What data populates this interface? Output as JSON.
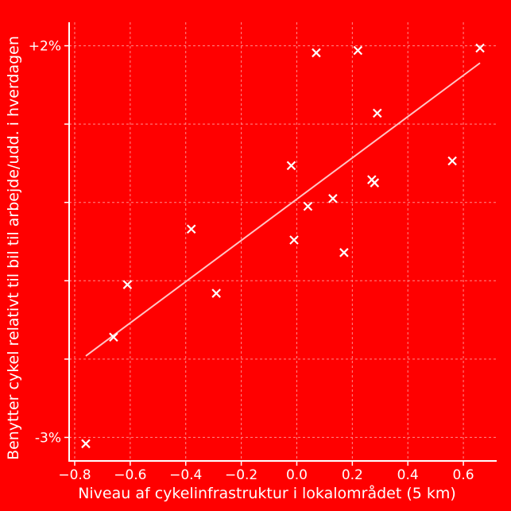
{
  "chart_data": {
    "type": "scatter",
    "xlabel": "Niveau af cykelinfrastruktur i lokalområdet (5 km)",
    "ylabel": "Benytter cykel relativt til bil til arbejde/udd. i hverdagen",
    "xlim": [
      -0.82,
      0.72
    ],
    "ylim": [
      -3.3,
      2.3
    ],
    "x_ticks": [
      -0.8,
      -0.6,
      -0.4,
      -0.2,
      0.0,
      0.2,
      0.4,
      0.6
    ],
    "x_tick_labels": [
      "−0.8",
      "−0.6",
      "−0.4",
      "−0.2",
      "0.0",
      "0.2",
      "0.4",
      "0.6"
    ],
    "y_ticks": [
      -3,
      -2,
      -1,
      0,
      1,
      2
    ],
    "y_tick_labels": [
      "-3%",
      "",
      "",
      "",
      "",
      "+2%"
    ],
    "grid": true,
    "marker": "x",
    "colors": {
      "background": "#ff0000",
      "foreground": "#ffffff",
      "grid": "#ff8c8c",
      "trend": "#ffc4c4"
    },
    "points": [
      {
        "x": -0.76,
        "y": -3.08
      },
      {
        "x": -0.66,
        "y": -1.72
      },
      {
        "x": -0.61,
        "y": -1.05
      },
      {
        "x": -0.38,
        "y": -0.34
      },
      {
        "x": -0.29,
        "y": -1.16
      },
      {
        "x": -0.02,
        "y": 0.47
      },
      {
        "x": -0.01,
        "y": -0.48
      },
      {
        "x": 0.04,
        "y": -0.05
      },
      {
        "x": 0.07,
        "y": 1.91
      },
      {
        "x": 0.13,
        "y": 0.05
      },
      {
        "x": 0.17,
        "y": -0.64
      },
      {
        "x": 0.22,
        "y": 1.94
      },
      {
        "x": 0.27,
        "y": 0.29
      },
      {
        "x": 0.28,
        "y": 0.25
      },
      {
        "x": 0.29,
        "y": 1.14
      },
      {
        "x": 0.56,
        "y": 0.53
      },
      {
        "x": 0.66,
        "y": 1.97
      }
    ],
    "trendline": {
      "x": [
        -0.76,
        0.66
      ],
      "y": [
        -1.96,
        1.78
      ]
    }
  }
}
